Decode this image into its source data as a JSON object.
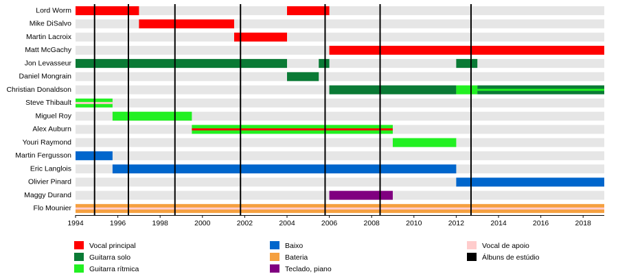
{
  "chart_data": {
    "type": "timeline",
    "xlim": [
      1994,
      2019
    ],
    "xticks": [
      1994,
      1996,
      1998,
      2000,
      2002,
      2004,
      2006,
      2008,
      2010,
      2012,
      2014,
      2016,
      2018
    ],
    "legend": [
      {
        "name": "Vocal principal",
        "color": "#ff0000"
      },
      {
        "name": "Guitarra solo",
        "color": "#0a7a35"
      },
      {
        "name": "Guitarra rítmica",
        "color": "#22f022"
      },
      {
        "name": "Baixo",
        "color": "#0066cc"
      },
      {
        "name": "Bateria",
        "color": "#f5a040"
      },
      {
        "name": "Teclado, piano",
        "color": "#800080"
      },
      {
        "name": "Vocal de apoio",
        "color": "#ffcccc"
      },
      {
        "name": "Álbuns de estúdio",
        "color": "#000000"
      }
    ],
    "albums": [
      1994.9,
      1996.5,
      1998.7,
      2001.8,
      2005.8,
      2008.4,
      2012.7
    ],
    "members": [
      {
        "name": "Lord Worm",
        "periods": [
          {
            "role": "Vocal principal",
            "start": 1994,
            "end": 1997
          },
          {
            "role": "Vocal principal",
            "start": 2004,
            "end": 2006
          }
        ]
      },
      {
        "name": "Mike DiSalvo",
        "periods": [
          {
            "role": "Vocal principal",
            "start": 1997,
            "end": 2001.5
          }
        ]
      },
      {
        "name": "Martin Lacroix",
        "periods": [
          {
            "role": "Vocal principal",
            "start": 2001.5,
            "end": 2004
          }
        ]
      },
      {
        "name": "Matt McGachy",
        "periods": [
          {
            "role": "Vocal principal",
            "start": 2006,
            "end": 2019
          }
        ]
      },
      {
        "name": "Jon Levasseur",
        "periods": [
          {
            "role": "Guitarra solo",
            "start": 1994,
            "end": 2004
          },
          {
            "role": "Guitarra solo",
            "start": 2005.5,
            "end": 2006
          },
          {
            "role": "Guitarra solo",
            "start": 2012,
            "end": 2013
          }
        ]
      },
      {
        "name": "Daniel Mongrain",
        "periods": [
          {
            "role": "Guitarra solo",
            "start": 2004,
            "end": 2005.5
          }
        ]
      },
      {
        "name": "Christian Donaldson",
        "periods": [
          {
            "role": "Guitarra solo",
            "start": 2006,
            "end": 2012
          },
          {
            "role": "Guitarra rítmica",
            "start": 2012,
            "end": 2013
          },
          {
            "role": "Guitarra solo",
            "stripe": "Guitarra rítmica",
            "start": 2013,
            "end": 2019
          }
        ]
      },
      {
        "name": "Steve Thibault",
        "periods": [
          {
            "role": "Guitarra rítmica",
            "stripe": "Vocal de apoio",
            "start": 1994,
            "end": 1995.75
          }
        ]
      },
      {
        "name": "Miguel Roy",
        "periods": [
          {
            "role": "Guitarra rítmica",
            "start": 1995.75,
            "end": 1999.5
          }
        ]
      },
      {
        "name": "Alex Auburn",
        "periods": [
          {
            "role": "Guitarra rítmica",
            "stripe": "Vocal principal",
            "start": 1999.5,
            "end": 2009
          }
        ]
      },
      {
        "name": "Youri Raymond",
        "periods": [
          {
            "role": "Guitarra rítmica",
            "start": 2009,
            "end": 2012
          }
        ]
      },
      {
        "name": "Martin Fergusson",
        "periods": [
          {
            "role": "Baixo",
            "start": 1994,
            "end": 1995.75
          }
        ]
      },
      {
        "name": "Eric Langlois",
        "periods": [
          {
            "role": "Baixo",
            "start": 1995.75,
            "end": 2012
          }
        ]
      },
      {
        "name": "Olivier Pinard",
        "periods": [
          {
            "role": "Baixo",
            "start": 2012,
            "end": 2019
          }
        ]
      },
      {
        "name": "Maggy Durand",
        "periods": [
          {
            "role": "Teclado, piano",
            "start": 2006,
            "end": 2009
          }
        ]
      },
      {
        "name": "Flo Mounier",
        "periods": [
          {
            "role": "Bateria",
            "stripe": "Vocal de apoio",
            "start": 1994,
            "end": 2019
          }
        ]
      }
    ]
  }
}
